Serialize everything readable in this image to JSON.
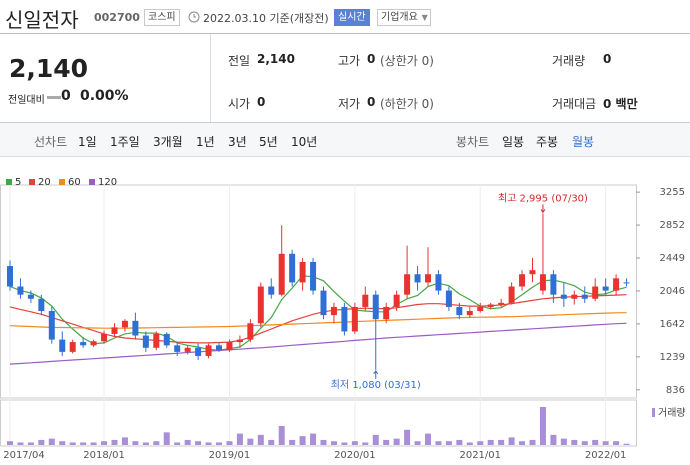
{
  "header": {
    "name": "신일전자",
    "code": "002700",
    "market": "코스피",
    "date": "2022.03.10 기준(개장전)",
    "realtime": "실시간",
    "company": "기업개요"
  },
  "quote": {
    "price": "2,140",
    "change_label": "전일대비",
    "change": "0",
    "change_rate": "0.00%",
    "stats": [
      {
        "label": "전일",
        "value": "2,140"
      },
      {
        "label": "고가",
        "value": "0",
        "sub": "(상한가 0)"
      },
      {
        "label": "거래량",
        "value": "0"
      },
      {
        "label": "시가",
        "value": "0"
      },
      {
        "label": "저가",
        "value": "0",
        "sub": "(하한가 0)"
      },
      {
        "label": "거래대금",
        "value": "0 백만"
      }
    ]
  },
  "tabs": {
    "line_label": "선차트",
    "line_periods": [
      "1일",
      "1주일",
      "3개월",
      "1년",
      "3년",
      "5년",
      "10년"
    ],
    "candle_label": "봉차트",
    "candle_periods": [
      "일봉",
      "주봉",
      "월봉"
    ]
  },
  "chart_data": {
    "type": "candlestick",
    "categories": [
      "2017/04",
      null,
      null,
      null,
      null,
      null,
      null,
      null,
      null,
      "2018/01",
      null,
      null,
      null,
      null,
      null,
      null,
      null,
      null,
      null,
      null,
      null,
      "2019/01",
      null,
      null,
      null,
      null,
      null,
      null,
      null,
      null,
      null,
      null,
      null,
      "2020/01",
      null,
      null,
      null,
      null,
      null,
      null,
      null,
      null,
      null,
      null,
      null,
      "2021/01",
      null,
      null,
      null,
      null,
      null,
      null,
      null,
      null,
      null,
      null,
      null,
      "2022/01",
      null,
      null
    ],
    "open": [
      2350,
      2100,
      2000,
      1950,
      1800,
      1450,
      1300,
      1420,
      1380,
      1430,
      1520,
      1600,
      1680,
      1500,
      1350,
      1520,
      1380,
      1300,
      1350,
      1250,
      1380,
      1320,
      1420,
      1450,
      1650,
      2100,
      2000,
      2500,
      2150,
      2400,
      2050,
      1750,
      1850,
      1550,
      1850,
      2000,
      1700,
      1850,
      2000,
      2250,
      2150,
      2250,
      2050,
      1850,
      1750,
      1800,
      1850,
      1880,
      1900,
      2100,
      2250,
      2050,
      2250,
      2000,
      1950,
      2000,
      1950,
      2100,
      2050,
      2150
    ],
    "high": [
      2420,
      2200,
      2050,
      2000,
      1850,
      1550,
      1450,
      1480,
      1450,
      1560,
      1650,
      1700,
      1780,
      1550,
      1550,
      1540,
      1420,
      1380,
      1400,
      1400,
      1420,
      1450,
      1500,
      1700,
      2150,
      2200,
      2850,
      2550,
      2450,
      2450,
      2100,
      1900,
      1900,
      1900,
      2100,
      2050,
      1900,
      2050,
      2600,
      2350,
      2580,
      2300,
      2100,
      1900,
      1850,
      1900,
      1900,
      1950,
      2150,
      2300,
      2450,
      2995,
      2300,
      2150,
      2050,
      2100,
      2200,
      2200,
      2250,
      2200
    ],
    "low": [
      2050,
      1950,
      1900,
      1750,
      1400,
      1250,
      1280,
      1350,
      1360,
      1400,
      1480,
      1550,
      1450,
      1300,
      1320,
      1350,
      1250,
      1270,
      1200,
      1220,
      1300,
      1300,
      1350,
      1420,
      1600,
      1950,
      1980,
      2100,
      2050,
      2000,
      1700,
      1650,
      1500,
      1520,
      1800,
      1080,
      1650,
      1800,
      1950,
      2050,
      2100,
      2000,
      1800,
      1700,
      1720,
      1780,
      1820,
      1850,
      1880,
      2050,
      2150,
      2000,
      1900,
      1850,
      1880,
      1900,
      1920,
      2000,
      2000,
      2100
    ],
    "close": [
      2100,
      2000,
      1950,
      1800,
      1450,
      1300,
      1420,
      1380,
      1430,
      1520,
      1600,
      1680,
      1500,
      1350,
      1520,
      1380,
      1300,
      1350,
      1250,
      1380,
      1320,
      1420,
      1450,
      1650,
      2100,
      2000,
      2500,
      2150,
      2400,
      2050,
      1750,
      1850,
      1550,
      1850,
      2000,
      1700,
      1850,
      2000,
      2250,
      2150,
      2250,
      2050,
      1850,
      1750,
      1800,
      1850,
      1880,
      1900,
      2100,
      2250,
      2300,
      2250,
      2000,
      1950,
      2000,
      1950,
      2100,
      2050,
      2200,
      2140
    ],
    "up_color": "#e8332f",
    "down_color": "#2f6fd6",
    "series": [
      {
        "name": "5",
        "color": "#43a843",
        "values": [
          2100,
          2050,
          2020,
          1960,
          1860,
          1700,
          1580,
          1470,
          1400,
          1410,
          1470,
          1520,
          1540,
          1530,
          1530,
          1490,
          1410,
          1380,
          1360,
          1330,
          1320,
          1340,
          1360,
          1450,
          1590,
          1720,
          1940,
          2080,
          2230,
          2220,
          2170,
          2040,
          1920,
          1810,
          1800,
          1790,
          1790,
          1880,
          1950,
          1990,
          2100,
          2140,
          2110,
          2010,
          1940,
          1860,
          1830,
          1840,
          1910,
          2000,
          2090,
          2170,
          2180,
          2150,
          2110,
          2030,
          2000,
          2010,
          2060,
          2090
        ]
      },
      {
        "name": "20",
        "color": "#e8403a",
        "values": [
          1850,
          1820,
          1790,
          1760,
          1720,
          1680,
          1640,
          1600,
          1560,
          1520,
          1490,
          1470,
          1460,
          1450,
          1440,
          1430,
          1420,
          1415,
          1410,
          1410,
          1415,
          1420,
          1440,
          1480,
          1530,
          1580,
          1630,
          1680,
          1720,
          1760,
          1790,
          1810,
          1820,
          1830,
          1835,
          1830,
          1830,
          1840,
          1860,
          1880,
          1890,
          1890,
          1880,
          1870,
          1860,
          1860,
          1865,
          1875,
          1890,
          1910,
          1930,
          1950,
          1960,
          1970,
          1975,
          1980,
          1985,
          1990,
          1995,
          2000
        ]
      },
      {
        "name": "60",
        "color": "#f28a1c",
        "values": [
          1620,
          1615,
          1610,
          1605,
          1600,
          1598,
          1596,
          1594,
          1592,
          1590,
          1590,
          1590,
          1592,
          1594,
          1596,
          1598,
          1600,
          1602,
          1604,
          1606,
          1608,
          1610,
          1615,
          1620,
          1625,
          1630,
          1635,
          1640,
          1645,
          1650,
          1655,
          1660,
          1665,
          1670,
          1675,
          1680,
          1685,
          1690,
          1695,
          1700,
          1705,
          1710,
          1715,
          1720,
          1722,
          1724,
          1726,
          1728,
          1730,
          1735,
          1740,
          1745,
          1750,
          1755,
          1760,
          1765,
          1770,
          1775,
          1778,
          1780
        ]
      },
      {
        "name": "120",
        "color": "#9a5cc6",
        "values": [
          1150,
          1158,
          1166,
          1175,
          1183,
          1192,
          1200,
          1208,
          1217,
          1225,
          1233,
          1242,
          1250,
          1258,
          1267,
          1275,
          1283,
          1292,
          1300,
          1308,
          1317,
          1325,
          1333,
          1342,
          1350,
          1360,
          1370,
          1380,
          1390,
          1400,
          1410,
          1420,
          1430,
          1440,
          1450,
          1460,
          1470,
          1478,
          1486,
          1494,
          1502,
          1510,
          1518,
          1526,
          1534,
          1542,
          1550,
          1558,
          1566,
          1574,
          1582,
          1590,
          1598,
          1606,
          1614,
          1622,
          1630,
          1638,
          1645,
          1650
        ]
      }
    ],
    "volume": {
      "name": "거래량",
      "color": "#a98fd6",
      "values": [
        3,
        2,
        2,
        4,
        5,
        3,
        2,
        2,
        2,
        3,
        4,
        6,
        3,
        2,
        3,
        10,
        2,
        4,
        3,
        2,
        2,
        3,
        9,
        5,
        8,
        4,
        15,
        4,
        7,
        9,
        4,
        3,
        2,
        3,
        2,
        8,
        4,
        5,
        12,
        3,
        9,
        3,
        3,
        4,
        2,
        3,
        4,
        4,
        6,
        3,
        4,
        30,
        8,
        5,
        4,
        3,
        4,
        3,
        3,
        1
      ]
    },
    "ylim": [
      760,
      3330
    ],
    "yticks": [
      836,
      1239,
      1642,
      2046,
      2449,
      2852,
      3255
    ],
    "annotations": [
      {
        "text": "최고 2,995 (07/30)",
        "color": "#d42a2a"
      },
      {
        "text": "최저 1,080 (03/31)",
        "color": "#2f6fd6"
      }
    ]
  }
}
